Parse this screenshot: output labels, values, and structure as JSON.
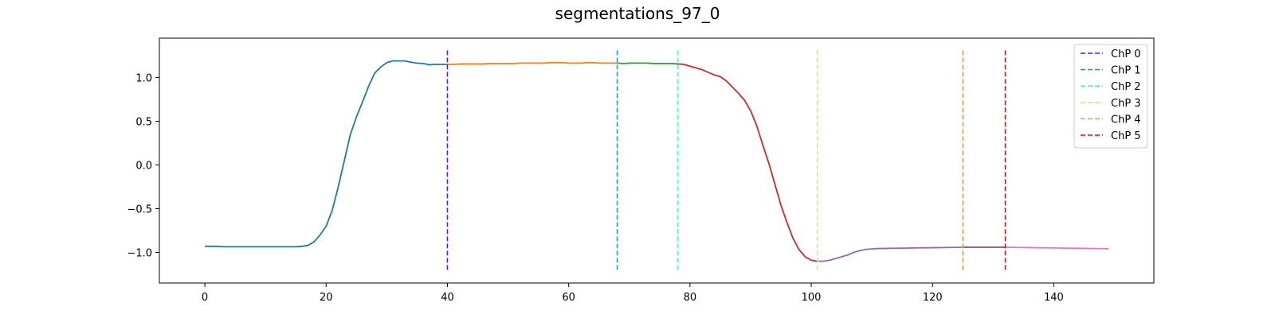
{
  "chart_data": {
    "type": "line",
    "title": "segmentations_97_0",
    "xlabel": "",
    "ylabel": "",
    "xlim": [
      -7.5,
      156.5
    ],
    "ylim": [
      -1.35,
      1.45
    ],
    "xticks": [
      0,
      20,
      40,
      60,
      80,
      100,
      120,
      140
    ],
    "yticks": [
      -1.0,
      -0.5,
      0.0,
      0.5,
      1.0
    ],
    "ytick_labels": [
      "−1.0",
      "−0.5",
      "0.0",
      "0.5",
      "1.0"
    ],
    "grid": false,
    "legend_position": "top-right",
    "signal": [
      -0.93,
      -0.93,
      -0.93,
      -0.935,
      -0.935,
      -0.935,
      -0.935,
      -0.935,
      -0.935,
      -0.935,
      -0.935,
      -0.935,
      -0.935,
      -0.935,
      -0.935,
      -0.935,
      -0.93,
      -0.92,
      -0.88,
      -0.8,
      -0.7,
      -0.52,
      -0.25,
      0.05,
      0.35,
      0.55,
      0.72,
      0.9,
      1.05,
      1.12,
      1.17,
      1.19,
      1.19,
      1.19,
      1.175,
      1.165,
      1.16,
      1.145,
      1.15,
      1.15,
      1.15,
      1.15,
      1.155,
      1.155,
      1.155,
      1.155,
      1.155,
      1.16,
      1.16,
      1.16,
      1.16,
      1.16,
      1.165,
      1.165,
      1.165,
      1.165,
      1.165,
      1.17,
      1.17,
      1.17,
      1.165,
      1.165,
      1.165,
      1.17,
      1.17,
      1.165,
      1.165,
      1.165,
      1.165,
      1.16,
      1.165,
      1.165,
      1.165,
      1.165,
      1.16,
      1.16,
      1.16,
      1.16,
      1.155,
      1.15,
      1.13,
      1.11,
      1.09,
      1.06,
      1.03,
      1.01,
      0.96,
      0.89,
      0.82,
      0.74,
      0.62,
      0.45,
      0.23,
      0.02,
      -0.22,
      -0.46,
      -0.66,
      -0.84,
      -0.97,
      -1.05,
      -1.09,
      -1.1,
      -1.1,
      -1.09,
      -1.07,
      -1.05,
      -1.03,
      -1.0,
      -0.98,
      -0.965,
      -0.96,
      -0.955,
      -0.955,
      -0.953,
      -0.952,
      -0.951,
      -0.95,
      -0.949,
      -0.948,
      -0.947,
      -0.946,
      -0.945,
      -0.944,
      -0.943,
      -0.942,
      -0.941,
      -0.941,
      -0.941,
      -0.941,
      -0.941,
      -0.941,
      -0.941,
      -0.941,
      -0.942,
      -0.943,
      -0.944,
      -0.945,
      -0.946,
      -0.947,
      -0.948,
      -0.949,
      -0.95,
      -0.951,
      -0.952,
      -0.953,
      -0.954,
      -0.955,
      -0.956,
      -0.957,
      -0.958
    ],
    "segments": [
      {
        "start": 0,
        "end": 40,
        "color": "#1f77b4"
      },
      {
        "start": 40,
        "end": 68,
        "color": "#ff7f0e"
      },
      {
        "start": 68,
        "end": 78,
        "color": "#2ca02c"
      },
      {
        "start": 78,
        "end": 101,
        "color": "#d62728"
      },
      {
        "start": 101,
        "end": 125,
        "color": "#9467bd"
      },
      {
        "start": 125,
        "end": 132,
        "color": "#8c564b"
      },
      {
        "start": 132,
        "end": 149,
        "color": "#e377c2"
      }
    ],
    "change_points": [
      {
        "name": "ChP 0",
        "x": 40,
        "color": "#8000ff"
      },
      {
        "name": "ChP 1",
        "x": 68,
        "color": "#1996f3"
      },
      {
        "name": "ChP 2",
        "x": 78,
        "color": "#4cf2ce"
      },
      {
        "name": "ChP 3",
        "x": 101,
        "color": "#b2f396"
      },
      {
        "name": "ChP 4",
        "x": 125,
        "color": "#ff964f"
      },
      {
        "name": "ChP 5",
        "x": 132,
        "color": "#ff0000"
      }
    ]
  }
}
